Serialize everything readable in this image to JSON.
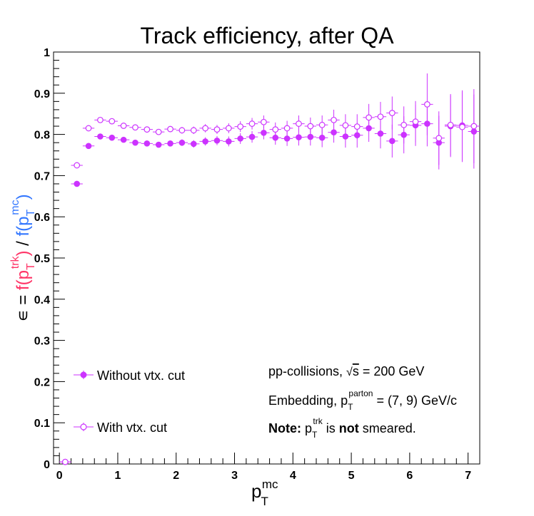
{
  "chart_data": {
    "type": "scatter",
    "title": "Track efficiency, after QA",
    "xlabel": {
      "main": "p",
      "sub": "T",
      "sup": "mc"
    },
    "ylabel": {
      "prefix": "∊ = ",
      "num_f": "f(p",
      "num_sub": "T",
      "num_sup": "trk",
      "num_close": ")",
      "slash": " / ",
      "den_f": "f(p",
      "den_sub": "T",
      "den_sup": "mc",
      "den_close": ")",
      "num_color": "#ff3366",
      "den_color": "#3377ff"
    },
    "xlim": [
      -0.1,
      7.2
    ],
    "ylim": [
      0,
      1
    ],
    "xticks": [
      0,
      1,
      2,
      3,
      4,
      5,
      6,
      7
    ],
    "yticks": [
      0,
      0.1,
      0.2,
      0.3,
      0.4,
      0.5,
      0.6,
      0.7,
      0.8,
      0.9,
      1
    ],
    "ytick_labels": [
      "0",
      "0.1",
      "0.2",
      "0.3",
      "0.4",
      "0.5",
      "0.6",
      "0.7",
      "0.8",
      "0.9",
      "1"
    ],
    "grid": false,
    "legend_position": "bottom-left",
    "series_color": "#cc33ff",
    "series": [
      {
        "name": "Without vtx. cut",
        "marker": "filled-circle",
        "x": [
          0.1,
          0.3,
          0.5,
          0.7,
          0.9,
          1.1,
          1.3,
          1.5,
          1.7,
          1.9,
          2.1,
          2.3,
          2.5,
          2.7,
          2.9,
          3.1,
          3.3,
          3.5,
          3.7,
          3.9,
          4.1,
          4.3,
          4.5,
          4.7,
          4.9,
          5.1,
          5.3,
          5.5,
          5.7,
          5.9,
          6.1,
          6.3,
          6.5,
          6.7,
          6.9,
          7.1
        ],
        "y": [
          0.005,
          0.68,
          0.772,
          0.795,
          0.792,
          0.787,
          0.78,
          0.778,
          0.775,
          0.778,
          0.78,
          0.777,
          0.783,
          0.785,
          0.783,
          0.79,
          0.794,
          0.804,
          0.792,
          0.79,
          0.793,
          0.794,
          0.792,
          0.805,
          0.795,
          0.798,
          0.815,
          0.802,
          0.784,
          0.799,
          0.822,
          0.826,
          0.78,
          0.82,
          0.822,
          0.807
        ],
        "err": [
          0.002,
          0.004,
          0.004,
          0.004,
          0.004,
          0.004,
          0.005,
          0.005,
          0.006,
          0.007,
          0.008,
          0.009,
          0.01,
          0.011,
          0.012,
          0.013,
          0.014,
          0.016,
          0.017,
          0.018,
          0.02,
          0.021,
          0.023,
          0.025,
          0.027,
          0.03,
          0.033,
          0.036,
          0.04,
          0.045,
          0.05,
          0.055,
          0.065,
          0.075,
          0.085,
          0.09
        ]
      },
      {
        "name": "With vtx. cut",
        "marker": "open-circle",
        "x": [
          0.1,
          0.3,
          0.5,
          0.7,
          0.9,
          1.1,
          1.3,
          1.5,
          1.7,
          1.9,
          2.1,
          2.3,
          2.5,
          2.7,
          2.9,
          3.1,
          3.3,
          3.5,
          3.7,
          3.9,
          4.1,
          4.3,
          4.5,
          4.7,
          4.9,
          5.1,
          5.3,
          5.5,
          5.7,
          5.9,
          6.1,
          6.3,
          6.5,
          6.7,
          6.9,
          7.1
        ],
        "y": [
          0.005,
          0.725,
          0.815,
          0.835,
          0.832,
          0.821,
          0.817,
          0.812,
          0.806,
          0.813,
          0.81,
          0.81,
          0.815,
          0.812,
          0.815,
          0.819,
          0.826,
          0.83,
          0.812,
          0.815,
          0.826,
          0.82,
          0.823,
          0.835,
          0.822,
          0.819,
          0.841,
          0.843,
          0.852,
          0.823,
          0.831,
          0.873,
          0.791,
          0.823,
          0.818,
          0.82
        ],
        "err": [
          0.002,
          0.004,
          0.004,
          0.004,
          0.004,
          0.004,
          0.005,
          0.005,
          0.006,
          0.007,
          0.008,
          0.009,
          0.01,
          0.011,
          0.012,
          0.013,
          0.014,
          0.016,
          0.017,
          0.018,
          0.02,
          0.021,
          0.023,
          0.025,
          0.027,
          0.03,
          0.033,
          0.036,
          0.04,
          0.045,
          0.05,
          0.075,
          0.065,
          0.075,
          0.085,
          0.09
        ]
      }
    ],
    "annotations": {
      "line1_text": "pp-collisions, ",
      "line1_sqrt": "√",
      "line1_s": "s",
      "line1_rest": " = 200 GeV",
      "line2_text": "Embedding, p",
      "line2_sub": "T",
      "line2_sup": "parton",
      "line2_rest": " = (7, 9) GeV/c",
      "line3_bold": "Note:",
      "line3_p": " p",
      "line3_sub": "T",
      "line3_sup": "trk",
      "line3_is": " is ",
      "line3_not": "not",
      "line3_rest": " smeared."
    }
  }
}
